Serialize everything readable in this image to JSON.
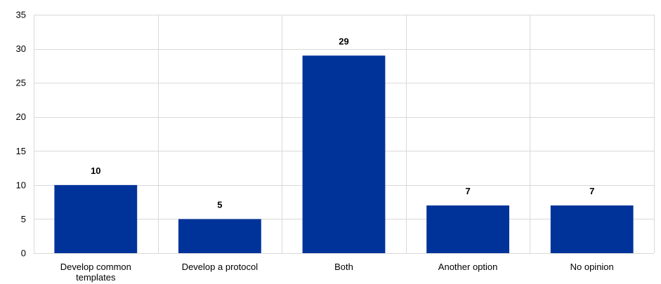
{
  "chart_data": {
    "type": "bar",
    "categories": [
      [
        "Develop common",
        "templates"
      ],
      [
        "Develop a protocol"
      ],
      [
        "Both"
      ],
      [
        "Another option"
      ],
      [
        "No opinion"
      ]
    ],
    "values": [
      10,
      5,
      29,
      7,
      7
    ],
    "title": "",
    "xlabel": "",
    "ylabel": "",
    "ylim": [
      0,
      35
    ],
    "yticks": [
      0,
      5,
      10,
      15,
      20,
      25,
      30,
      35
    ],
    "grid": true,
    "grid_direction": "both",
    "legend": "none",
    "data_labels": true
  },
  "colors": {
    "bar": "#003399",
    "grid": "#d9d9d9",
    "text": "#000000"
  }
}
